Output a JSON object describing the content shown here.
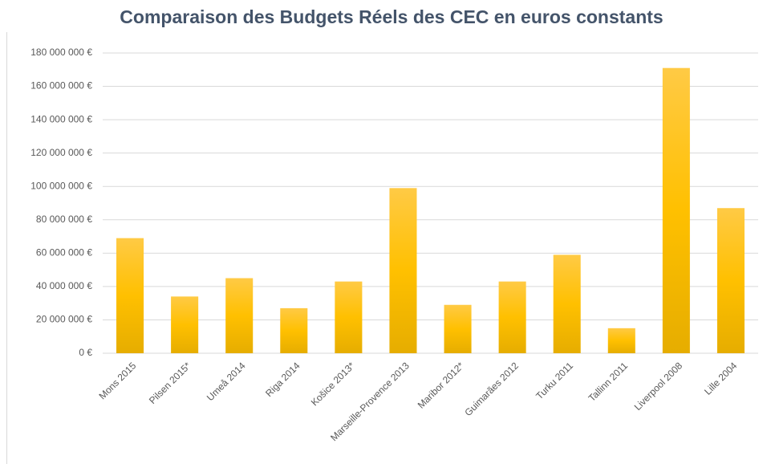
{
  "chart_data": {
    "type": "bar",
    "title": "Comparaison des Budgets Réels des CEC en euros constants",
    "categories": [
      "Mons 2015",
      "Pilsen 2015*",
      "Umeå 2014",
      "Riga 2014",
      "Košice 2013*",
      "Marseille-Provence 2013",
      "Maribor 2012*",
      "Guimarães 2012",
      "Turku 2011",
      "Tallinn 2011",
      "Liverpool 2008",
      "Lille 2004"
    ],
    "values": [
      69000000,
      34000000,
      45000000,
      27000000,
      43000000,
      99000000,
      29000000,
      43000000,
      59000000,
      15000000,
      171000000,
      87000000
    ],
    "color": "#ffc000",
    "ylim": [
      0,
      180000000
    ],
    "yticks": [
      {
        "value": 0,
        "label": "0 €"
      },
      {
        "value": 20000000,
        "label": "20 000 000 €"
      },
      {
        "value": 40000000,
        "label": "40 000 000 €"
      },
      {
        "value": 60000000,
        "label": "60 000 000 €"
      },
      {
        "value": 80000000,
        "label": "80 000 000 €"
      },
      {
        "value": 100000000,
        "label": "100 000 000 €"
      },
      {
        "value": 120000000,
        "label": "120 000 000 €"
      },
      {
        "value": 140000000,
        "label": "140 000 000 €"
      },
      {
        "value": 160000000,
        "label": "160 000 000 €"
      },
      {
        "value": 180000000,
        "label": "180 000 000 €"
      }
    ],
    "grid": true
  }
}
